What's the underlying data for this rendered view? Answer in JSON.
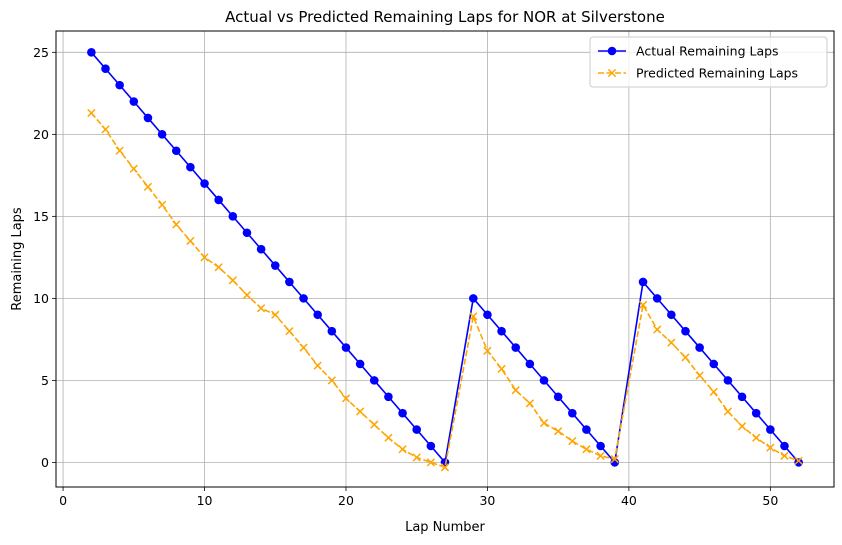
{
  "chart_data": {
    "type": "line",
    "title": "Actual vs Predicted Remaining Laps for NOR at Silverstone",
    "xlabel": "Lap Number",
    "ylabel": "Remaining Laps",
    "xlim": [
      -0.5,
      54.5
    ],
    "ylim": [
      -1.5,
      26.3
    ],
    "xticks": [
      0,
      10,
      20,
      30,
      40,
      50
    ],
    "yticks": [
      0,
      5,
      10,
      15,
      20,
      25
    ],
    "grid": true,
    "legend_position": "top-right",
    "x": [
      2,
      3,
      4,
      5,
      6,
      7,
      8,
      9,
      10,
      11,
      12,
      13,
      14,
      15,
      16,
      17,
      18,
      19,
      20,
      21,
      22,
      23,
      24,
      25,
      26,
      27,
      29,
      30,
      31,
      32,
      33,
      34,
      35,
      36,
      37,
      38,
      39,
      41,
      42,
      43,
      44,
      45,
      46,
      47,
      48,
      49,
      50,
      51,
      52
    ],
    "series": [
      {
        "name": "Actual Remaining Laps",
        "color": "#0000ff",
        "marker": "circle",
        "line_style": "solid",
        "values": [
          25,
          24,
          23,
          22,
          21,
          20,
          19,
          18,
          17,
          16,
          15,
          14,
          13,
          12,
          11,
          10,
          9,
          8,
          7,
          6,
          5,
          4,
          3,
          2,
          1,
          0,
          10,
          9,
          8,
          7,
          6,
          5,
          4,
          3,
          2,
          1,
          0,
          11,
          10,
          9,
          8,
          7,
          6,
          5,
          4,
          3,
          2,
          1,
          0
        ]
      },
      {
        "name": "Predicted Remaining Laps",
        "color": "#ffa500",
        "marker": "x",
        "line_style": "dashed",
        "values": [
          21.3,
          20.3,
          19.0,
          17.9,
          16.8,
          15.7,
          14.5,
          13.5,
          12.5,
          11.9,
          11.1,
          10.2,
          9.4,
          9.0,
          8.0,
          7.0,
          5.9,
          5.0,
          3.9,
          3.1,
          2.3,
          1.5,
          0.8,
          0.3,
          0.0,
          -0.3,
          8.9,
          6.8,
          5.7,
          4.4,
          3.6,
          2.4,
          1.9,
          1.3,
          0.8,
          0.4,
          0.2,
          9.6,
          8.1,
          7.3,
          6.4,
          5.3,
          4.3,
          3.1,
          2.2,
          1.5,
          0.9,
          0.4,
          0.1
        ]
      }
    ]
  }
}
